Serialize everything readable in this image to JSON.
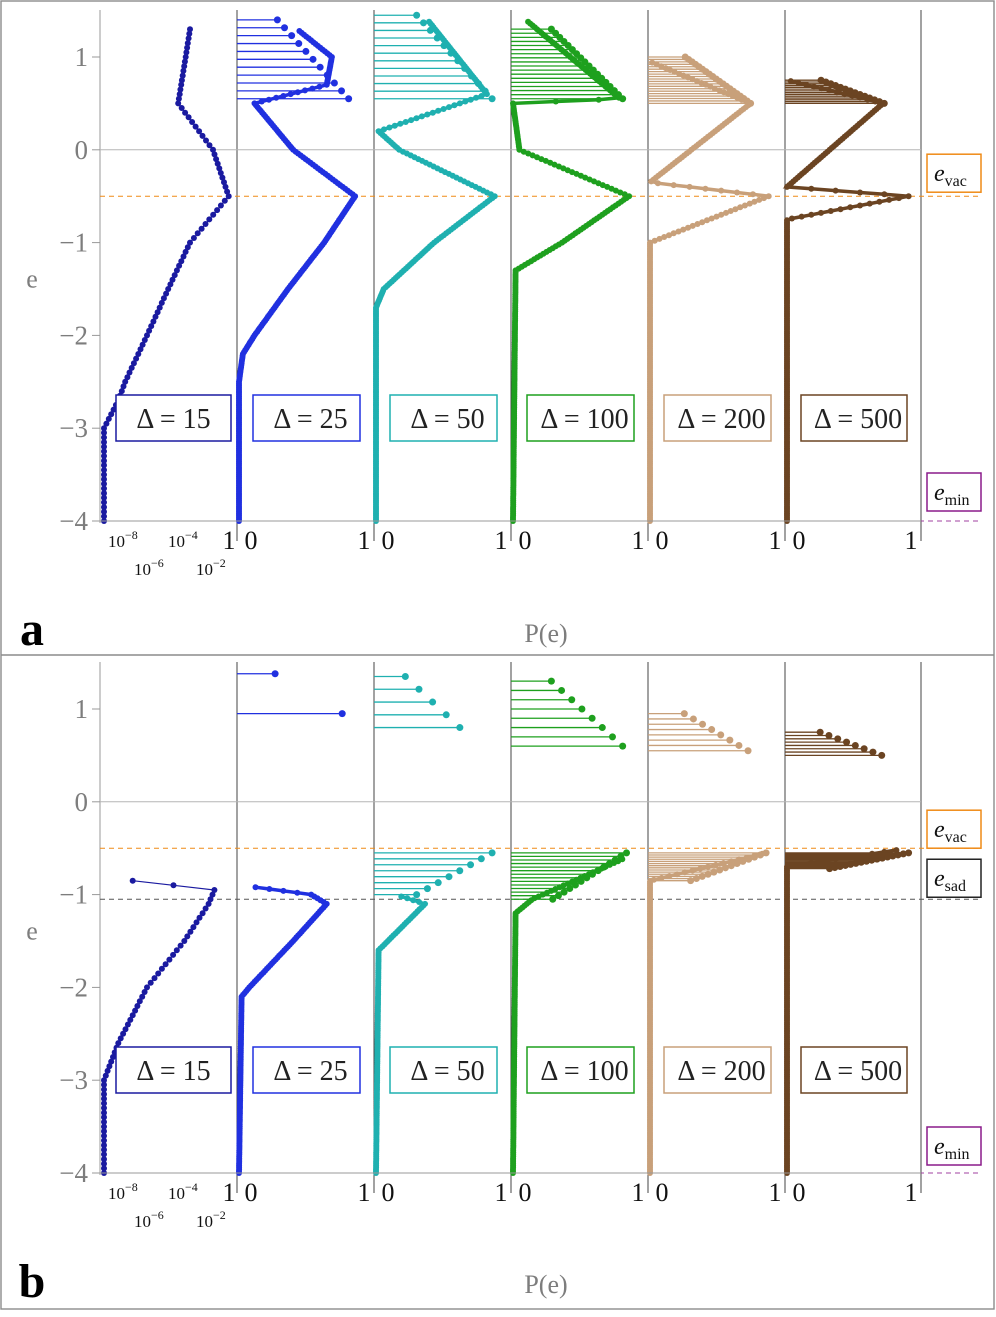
{
  "figure": {
    "panels": [
      {
        "letter": "a",
        "xlabel": "P(e)",
        "ylabel": "e"
      },
      {
        "letter": "b",
        "xlabel": "P(e)",
        "ylabel": "e"
      }
    ],
    "y_ticks": [
      "1",
      "0",
      "−1",
      "−2",
      "−3",
      "−4"
    ],
    "log_ticks_top": [
      "10",
      "−8",
      "10",
      "−4",
      "1"
    ],
    "log_ticks_bottom": [
      "10",
      "−6",
      "10",
      "−2"
    ],
    "lin_ticks": [
      "0",
      "1"
    ],
    "ref_labels": {
      "vac": {
        "main": "e",
        "sub": "vac",
        "color": "#ef8a16"
      },
      "sad": {
        "main": "e",
        "sub": "sad",
        "color": "#222222"
      },
      "min": {
        "main": "e",
        "sub": "min",
        "color": "#8a1a8a"
      }
    }
  },
  "chart_data": [
    {
      "type": "line",
      "panel": "a",
      "xlabel": "P(e)",
      "ylabel": "e",
      "ylim": [
        -4,
        1.45
      ],
      "reference_lines": {
        "e_vac": -0.5,
        "e_min": -4,
        "zero": 0
      },
      "series": [
        {
          "name": "Δ = 15",
          "color": "#1a1aa0",
          "x_scale": "log",
          "xlim": [
            1e-09,
            1
          ],
          "peak_e": -0.5,
          "peak_p": 0.5,
          "points_e": [
            -4,
            -3.5,
            -3,
            -2.7,
            -2.5,
            -2,
            -1.5,
            -1,
            -0.5,
            0,
            0.5,
            1,
            1.3
          ],
          "points_p": [
            1e-09,
            1e-09,
            1e-09,
            1e-08,
            3e-08,
            1e-06,
            3e-05,
            0.001,
            0.5,
            0.04,
            0.00015,
            0.0005,
            0.001
          ]
        },
        {
          "name": "Δ = 25",
          "color": "#2030e0",
          "x_scale": "linear",
          "xlim": [
            0,
            1
          ],
          "peak_e": -0.5,
          "peak_p": 0.9,
          "points_e": [
            -4,
            -2.5,
            -2.2,
            -2,
            -1.5,
            -1,
            -0.5,
            0,
            0.5,
            0.7,
            1.0,
            1.3
          ],
          "points_p": [
            0,
            0,
            0.03,
            0.12,
            0.38,
            0.66,
            0.9,
            0.42,
            0.12,
            0.68,
            0.72,
            0.45
          ]
        },
        {
          "name": "Δ = 50",
          "color": "#1fb0b0",
          "x_scale": "linear",
          "xlim": [
            0,
            1
          ],
          "peak_e": -0.5,
          "peak_p": 0.92,
          "points_e": [
            -4,
            -1.7,
            -1.5,
            -1,
            -0.5,
            0,
            0.2,
            0.6,
            1.4
          ],
          "points_p": [
            0,
            0,
            0.06,
            0.45,
            0.92,
            0.18,
            0.02,
            0.86,
            0.4
          ]
        },
        {
          "name": "Δ = 100",
          "color": "#1ea01e",
          "x_scale": "linear",
          "xlim": [
            0,
            1
          ],
          "peak_e": -0.5,
          "peak_p": 0.9,
          "points_e": [
            -4,
            -1.3,
            -1,
            -0.5,
            0,
            0.5,
            0.55,
            1.4
          ],
          "points_p": [
            0,
            0.02,
            0.38,
            0.9,
            0.05,
            0.0,
            0.83,
            0.1
          ]
        },
        {
          "name": "Δ = 200",
          "color": "#c8a07a",
          "x_scale": "linear",
          "xlim": [
            0,
            1
          ],
          "peak_e": -0.5,
          "peak_p": 0.92,
          "points_e": [
            -4,
            -1,
            -0.5,
            -0.35,
            0.5,
            0.95
          ],
          "points_p": [
            0,
            0.0,
            0.92,
            0.0,
            0.78,
            0.0
          ]
        },
        {
          "name": "Δ = 500",
          "color": "#6b4422",
          "x_scale": "linear",
          "xlim": [
            0,
            1
          ],
          "peak_e": -0.5,
          "peak_p": 0.95,
          "points_e": [
            -4,
            -0.75,
            -0.5,
            -0.4,
            0.5,
            0.75
          ],
          "points_p": [
            0,
            0.0,
            0.95,
            0.0,
            0.75,
            0.0
          ]
        }
      ]
    },
    {
      "type": "line",
      "panel": "b",
      "xlabel": "P(e)",
      "ylabel": "e",
      "ylim": [
        -4,
        1.45
      ],
      "reference_lines": {
        "e_vac": -0.5,
        "e_sad": -1.05,
        "e_min": -4,
        "zero": 0
      },
      "series": [
        {
          "name": "Δ = 15",
          "color": "#1a1aa0",
          "x_scale": "log",
          "xlim": [
            1e-09,
            1
          ],
          "peak_e": -1.1,
          "peak_p": 0.02,
          "points_e": [
            -4,
            -3,
            -2.6,
            -2,
            -1.5,
            -1.1,
            -0.95,
            -0.85
          ],
          "points_p": [
            1e-09,
            1e-09,
            1e-08,
            1e-06,
            0.0004,
            0.02,
            0.05,
            1e-07
          ]
        },
        {
          "name": "Δ = 25",
          "color": "#2030e0",
          "x_scale": "linear",
          "xlim": [
            0,
            1
          ],
          "peak_e": -1.1,
          "peak_p": 0.68,
          "points_e": [
            -4,
            -2.1,
            -2,
            -1.5,
            -1.1,
            -1.0,
            -0.9
          ],
          "points_p": [
            0,
            0.02,
            0.08,
            0.42,
            0.68,
            0.56,
            0.02
          ]
        },
        {
          "name": "Δ = 50",
          "color": "#1fb0b0",
          "x_scale": "linear",
          "xlim": [
            0,
            1
          ],
          "peak_e": -1.1,
          "peak_p": 0.38,
          "points_e": [
            -4,
            -1.6,
            -1.1,
            -1.0
          ],
          "points_p": [
            0,
            0.02,
            0.38,
            0.15
          ]
        },
        {
          "name": "Δ = 100",
          "color": "#1ea01e",
          "x_scale": "linear",
          "xlim": [
            0,
            1
          ],
          "peak_e": -0.6,
          "peak_p": 0.88,
          "points_e": [
            -4,
            -1.2,
            -1.05,
            -0.6
          ],
          "points_p": [
            0,
            0.02,
            0.15,
            0.88
          ]
        },
        {
          "name": "Δ = 200",
          "color": "#c8a07a",
          "x_scale": "linear",
          "xlim": [
            0,
            1
          ],
          "peak_e": -0.55,
          "peak_p": 0.9,
          "points_e": [
            -4,
            -0.85,
            -0.55
          ],
          "points_p": [
            0,
            0.0,
            0.9
          ]
        },
        {
          "name": "Δ = 500",
          "color": "#6b4422",
          "x_scale": "linear",
          "xlim": [
            0,
            1
          ],
          "peak_e": -0.5,
          "peak_p": 0.95,
          "points_e": [
            -4,
            -0.7,
            -0.5
          ],
          "points_p": [
            0,
            0.0,
            0.95
          ]
        }
      ]
    }
  ]
}
